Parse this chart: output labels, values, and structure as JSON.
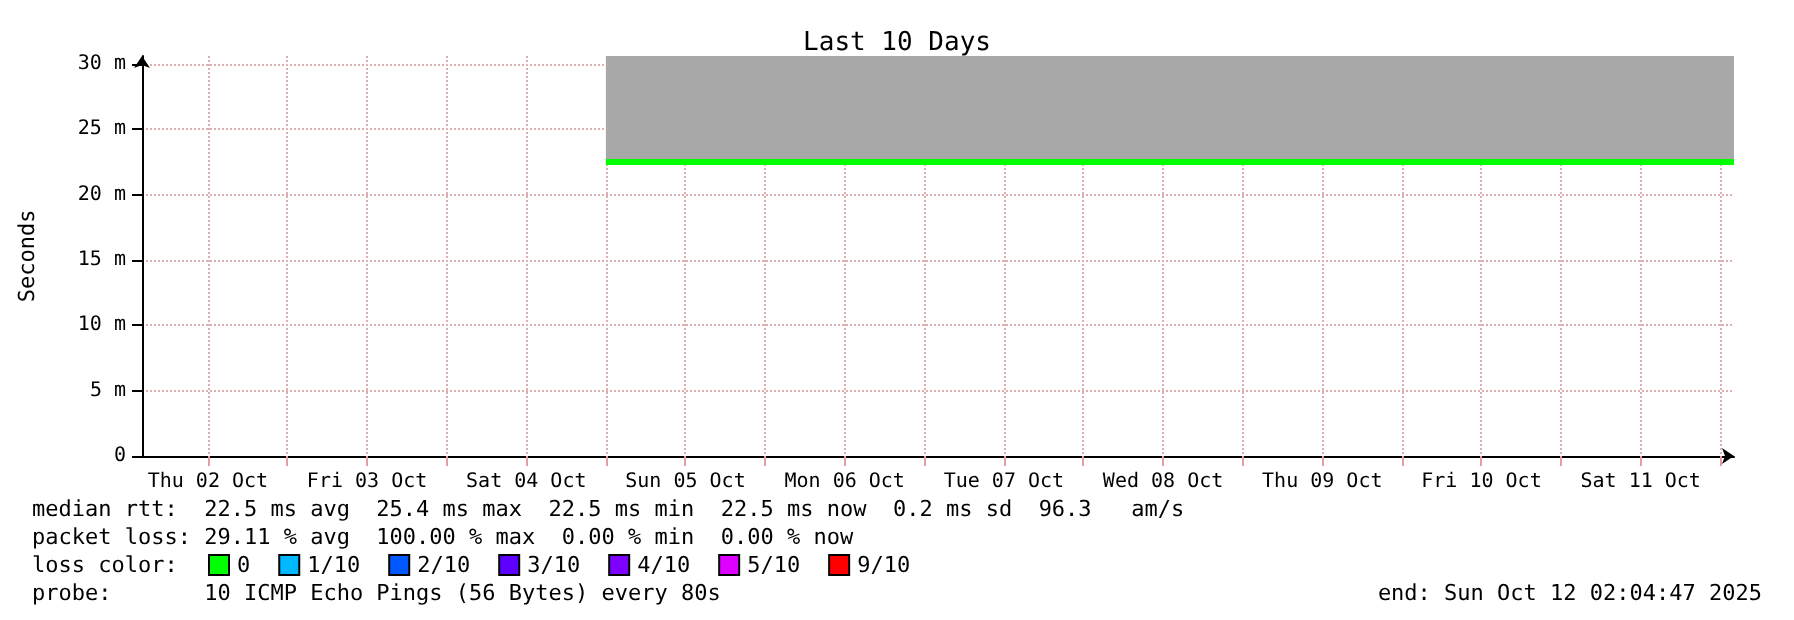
{
  "chart_data": {
    "type": "line",
    "title": "Last 10 Days",
    "ylabel": "Seconds",
    "legend_title": "loss color:",
    "legend": "bottom left",
    "grid": true,
    "marker": "none",
    "line_style": "solid",
    "xlim": [
      "2025-10-02T02:04",
      "2025-10-12T02:04"
    ],
    "xticks": [
      {
        "value": "2025-10-02T12:00",
        "label": "Thu 02 Oct"
      },
      {
        "value": "2025-10-03T00:00",
        "label": null
      },
      {
        "value": "2025-10-03T12:00",
        "label": "Fri 03 Oct"
      },
      {
        "value": "2025-10-04T00:00",
        "label": null
      },
      {
        "value": "2025-10-04T12:00",
        "label": "Sat 04 Oct"
      },
      {
        "value": "2025-10-05T00:00",
        "label": null
      },
      {
        "value": "2025-10-05T12:00",
        "label": "Sun 05 Oct"
      },
      {
        "value": "2025-10-06T00:00",
        "label": null
      },
      {
        "value": "2025-10-06T12:00",
        "label": "Mon 06 Oct"
      },
      {
        "value": "2025-10-07T00:00",
        "label": null
      },
      {
        "value": "2025-10-07T12:00",
        "label": "Tue 07 Oct"
      },
      {
        "value": "2025-10-08T00:00",
        "label": null
      },
      {
        "value": "2025-10-08T12:00",
        "label": "Wed 08 Oct"
      },
      {
        "value": "2025-10-09T00:00",
        "label": null
      },
      {
        "value": "2025-10-09T12:00",
        "label": "Thu 09 Oct"
      },
      {
        "value": "2025-10-10T00:00",
        "label": null
      },
      {
        "value": "2025-10-10T12:00",
        "label": "Fri 10 Oct"
      },
      {
        "value": "2025-10-11T00:00",
        "label": null
      },
      {
        "value": "2025-10-11T12:00",
        "label": "Sat 11 Oct"
      },
      {
        "value": "2025-10-12T00:00",
        "label": null
      }
    ],
    "ylim": [
      0,
      30.6
    ],
    "yticks": [
      0,
      {
        "value": 5,
        "label": "5 m"
      },
      {
        "value": 10,
        "label": "10 m"
      },
      {
        "value": 15,
        "label": "15 m"
      },
      {
        "value": 20,
        "label": "20 m"
      },
      {
        "value": 25,
        "label": "25 m"
      },
      {
        "value": 30,
        "label": "30 m"
      }
    ],
    "x": [
      "2025-10-05T00:00",
      "2025-10-06T00:00",
      "2025-10-07T00:00",
      "2025-10-08T00:00",
      "2025-10-09T00:00",
      "2025-10-10T00:00",
      "2025-10-11T00:00",
      "2025-10-12T00:00",
      "2025-10-12T02:04"
    ],
    "series": [
      {
        "name": "0",
        "color": "#00ff00",
        "values": [
          22.5,
          22.5,
          22.5,
          22.5,
          22.5,
          22.5,
          22.5,
          22.5,
          22.5
        ],
        "lower": [
          22.5,
          22.5,
          22.5,
          22.5,
          22.5,
          22.5,
          22.5,
          22.5,
          22.5
        ],
        "upper": [
          30.6,
          30.6,
          30.6,
          30.6,
          30.6,
          30.6,
          30.6,
          30.6,
          30.6
        ]
      },
      {
        "name": "1/10",
        "color": "#00b8ff",
        "values": [
          null,
          null,
          null,
          null,
          null,
          null,
          null,
          null,
          null
        ]
      },
      {
        "name": "2/10",
        "color": "#0059ff",
        "values": [
          null,
          null,
          null,
          null,
          null,
          null,
          null,
          null,
          null
        ]
      },
      {
        "name": "3/10",
        "color": "#5e00ff",
        "values": [
          null,
          null,
          null,
          null,
          null,
          null,
          null,
          null,
          null
        ]
      },
      {
        "name": "4/10",
        "color": "#7e00ff",
        "values": [
          null,
          null,
          null,
          null,
          null,
          null,
          null,
          null,
          null
        ]
      },
      {
        "name": "5/10",
        "color": "#dd00ff",
        "values": [
          null,
          null,
          null,
          null,
          null,
          null,
          null,
          null,
          null
        ]
      },
      {
        "name": "9/10",
        "color": "#ff0000",
        "values": [
          null,
          null,
          null,
          null,
          null,
          null,
          null,
          null,
          null
        ]
      }
    ],
    "annotations": [
      "median rtt:  22.5 ms avg  25.4 ms max  22.5 ms min  22.5 ms now  0.2 ms sd  96.3   am/s",
      "packet loss: 29.11 % avg  100.00 % max  0.00 % min  0.00 % now",
      "probe:       10 ICMP Echo Pings (56 Bytes) every 80s",
      "end: Sun Oct 12 02:04:47 2025"
    ]
  }
}
